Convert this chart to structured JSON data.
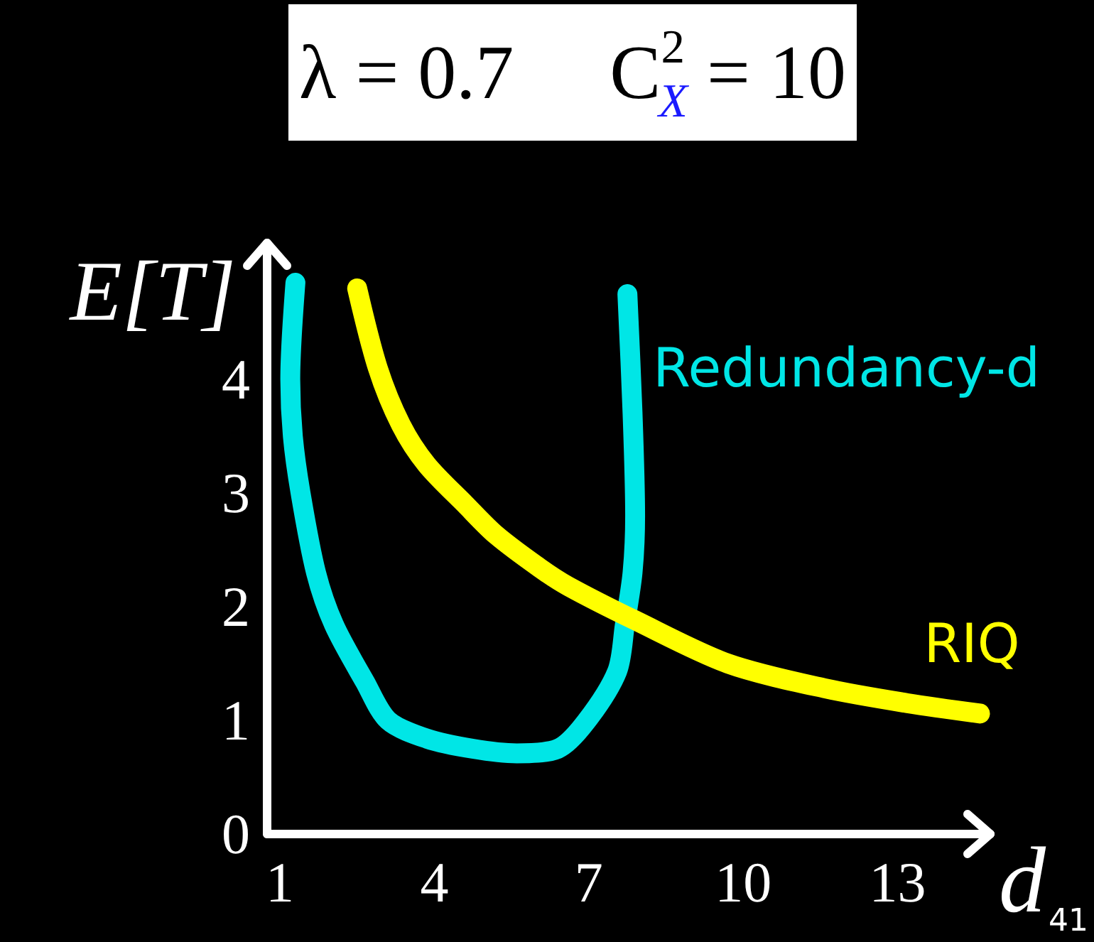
{
  "chart_data": {
    "type": "line",
    "title": "λ = 0.7     C$^{2}$$_{X}$ = 10",
    "xlabel": "d",
    "ylabel": "E[T]",
    "xlim": [
      0.75,
      14.8
    ],
    "ylim": [
      0,
      5.2
    ],
    "xticks": [
      1,
      4,
      7,
      10,
      13
    ],
    "yticks": [
      0,
      1,
      2,
      3,
      4
    ],
    "marker": "none",
    "line_style": "solid",
    "annotations": [
      "41"
    ],
    "series": [
      {
        "name": "Redundancy-d",
        "color": "#00e6e6",
        "x": [
          1.3,
          1.2,
          1.25,
          1.4,
          1.7,
          2.05,
          2.65,
          3.1,
          3.85,
          4.75,
          5.6,
          6.4,
          6.95,
          7.55,
          7.7,
          7.85,
          7.9,
          7.85,
          7.75
        ],
        "values": [
          4.85,
          4.0,
          3.5,
          3.0,
          2.3,
          1.84,
          1.34,
          1.0,
          0.84,
          0.75,
          0.71,
          0.75,
          0.99,
          1.43,
          1.84,
          2.3,
          2.8,
          3.7,
          4.75
        ]
      },
      {
        "name": "RIQ",
        "color": "#ffff00",
        "x": [
          2.5,
          2.9,
          3.35,
          3.85,
          4.6,
          5.2,
          6.05,
          6.6,
          7.9,
          9.7,
          11.6,
          13.2,
          14.6
        ],
        "values": [
          4.8,
          4.1,
          3.6,
          3.25,
          2.9,
          2.63,
          2.34,
          2.18,
          1.88,
          1.5,
          1.28,
          1.15,
          1.06
        ]
      }
    ]
  }
}
